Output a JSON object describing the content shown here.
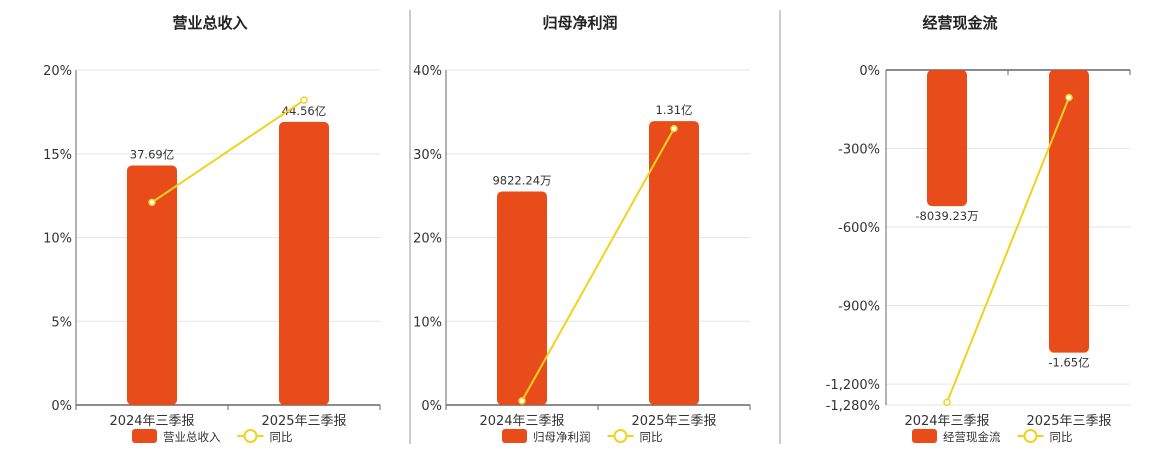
{
  "colors": {
    "bar": "#e84c1b",
    "line": "#f2d21d",
    "grid": "#e6e6e6",
    "axis": "#666666",
    "divider": "#999999"
  },
  "chart_data": [
    {
      "type": "bar",
      "title": "营业总收入",
      "categories": [
        "2024年三季报",
        "2025年三季报"
      ],
      "y_ticks": [
        "20%",
        "15%",
        "10%",
        "5%",
        "0%"
      ],
      "ylim": [
        0,
        20
      ],
      "series": [
        {
          "name": "营业总收入",
          "type": "bar",
          "values": [
            14.3,
            16.9
          ],
          "labels": [
            "37.69亿",
            "44.56亿"
          ]
        },
        {
          "name": "同比",
          "type": "line",
          "values": [
            12.1,
            18.2
          ]
        }
      ]
    },
    {
      "type": "bar",
      "title": "归母净利润",
      "categories": [
        "2024年三季报",
        "2025年三季报"
      ],
      "y_ticks": [
        "40%",
        "30%",
        "20%",
        "10%",
        "0%"
      ],
      "ylim": [
        0,
        40
      ],
      "series": [
        {
          "name": "归母净利润",
          "type": "bar",
          "values": [
            25.5,
            33.9
          ],
          "labels": [
            "9822.24万",
            "1.31亿"
          ]
        },
        {
          "name": "同比",
          "type": "line",
          "values": [
            0.5,
            33.0
          ]
        }
      ]
    },
    {
      "type": "bar",
      "title": "经营现金流",
      "categories": [
        "2024年三季报",
        "2025年三季报"
      ],
      "y_ticks": [
        "0%",
        "-300%",
        "-600%",
        "-900%",
        "-1,200%",
        "-1,280%"
      ],
      "ylim": [
        -1280,
        0
      ],
      "series": [
        {
          "name": "经营现金流",
          "type": "bar",
          "values": [
            -520,
            -1080
          ],
          "labels": [
            "-8039.23万",
            "-1.65亿"
          ]
        },
        {
          "name": "同比",
          "type": "line",
          "values": [
            -1270,
            -105
          ]
        }
      ]
    }
  ]
}
